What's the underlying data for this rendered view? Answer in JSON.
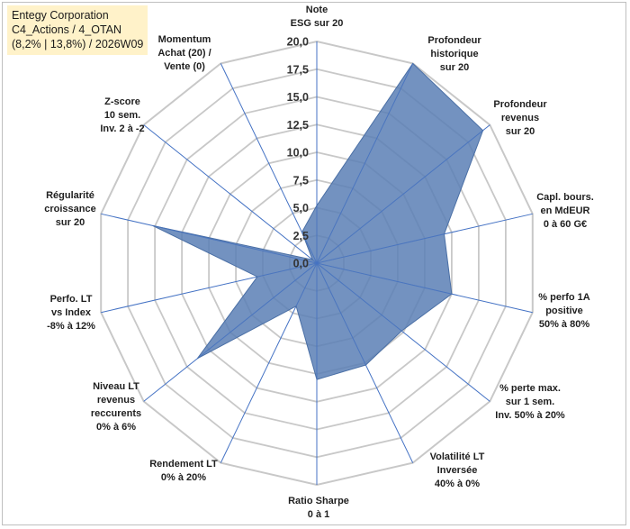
{
  "title": {
    "line1": "Entegy Corporation",
    "line2": "C4_Actions / 4_OTAN",
    "line3": "(8,2% | 13,8%) / 2026W09"
  },
  "colors": {
    "fill": "#5a7fb5",
    "fill_opacity": 0.85,
    "stroke": "#4a6fa5",
    "grid": "#c8c8c8",
    "spoke": "#4472c4",
    "title_bg": "#fff2c9"
  },
  "chart_data": {
    "type": "radar",
    "rmax": 20,
    "tick_step": 2.5,
    "tick_labels": [
      "0,0",
      "2,5",
      "5,0",
      "7,5",
      "10,0",
      "12,5",
      "15,0",
      "17,5",
      "20,0"
    ],
    "axes": [
      {
        "label": [
          "Note",
          "ESG sur 20"
        ],
        "value": 5.2
      },
      {
        "label": [
          "Profondeur",
          "historique",
          "sur 20"
        ],
        "value": 20.0
      },
      {
        "label": [
          "Profondeur",
          "revenus",
          "sur 20"
        ],
        "value": 19.2
      },
      {
        "label": [
          "Capl. bours.",
          "en MdEUR",
          "0 à 60 G€"
        ],
        "value": 11.8
      },
      {
        "label": [
          "% perfo 1A",
          "positive",
          "50% à 80%"
        ],
        "value": 12.5
      },
      {
        "label": [
          "% perte max.",
          "sur 1 sem.",
          "Inv. 50% à 20%"
        ],
        "value": 9.8
      },
      {
        "label": [
          "Volatilité LT",
          "Inversée",
          "40% à 0%"
        ],
        "value": 10.2
      },
      {
        "label": [
          "Ratio Sharpe",
          "0 à 1"
        ],
        "value": 10.5
      },
      {
        "label": [
          "Rendement LT",
          "0% à 20%"
        ],
        "value": 4.3
      },
      {
        "label": [
          "Niveau LT",
          "revenus",
          "reccurents",
          "0% à 6%"
        ],
        "value": 13.8
      },
      {
        "label": [
          "Perfo. LT",
          "vs Index",
          "-8% à 12%"
        ],
        "value": 5.5
      },
      {
        "label": [
          "Régularité",
          "croissance",
          "sur 20"
        ],
        "value": 15.2
      },
      {
        "label": [
          "Z-score",
          "10 sem.",
          "Inv. 2 à -2"
        ],
        "value": 0.5
      },
      {
        "label": [
          "Momentum",
          "Achat (20) /",
          "Vente (0)"
        ],
        "value": 3.1
      }
    ]
  }
}
